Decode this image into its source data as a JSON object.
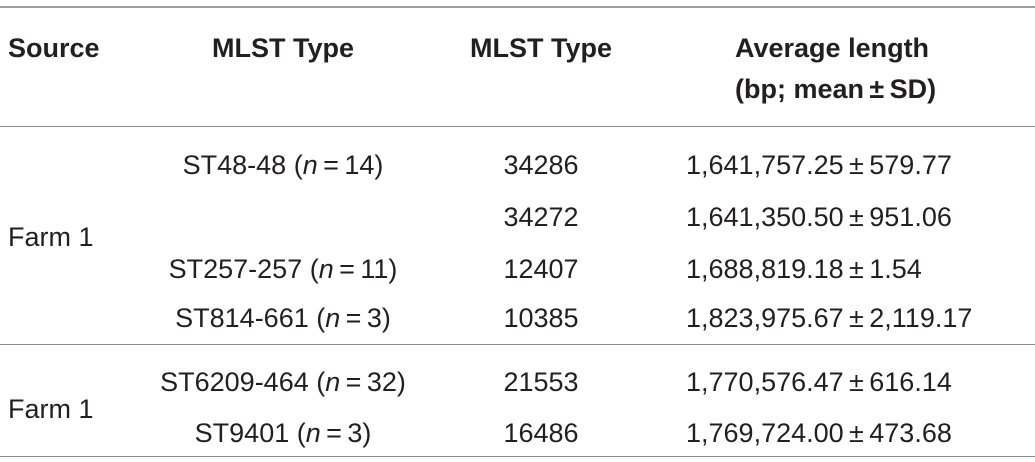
{
  "header": {
    "col1": "Source",
    "col2": "MLST Type",
    "col3": "MLST Type",
    "col4_line1": "Average length",
    "col4_line2": "(bp; mean ± SD)"
  },
  "groups": [
    {
      "source": "Farm 1",
      "rows": [
        {
          "type_pre": "ST48-48 (",
          "n_sym": "n",
          "type_post": " = 14)",
          "mlst": "34286",
          "avg": "1,641,757.25 ± 579.77"
        },
        {
          "type_pre": "",
          "n_sym": "",
          "type_post": "",
          "mlst": "34272",
          "avg": "1,641,350.50 ± 951.06"
        },
        {
          "type_pre": "ST257-257 (",
          "n_sym": "n",
          "type_post": " = 11)",
          "mlst": "12407",
          "avg": "1,688,819.18 ± 1.54"
        },
        {
          "type_pre": "ST814-661 (",
          "n_sym": "n",
          "type_post": " = 3)",
          "mlst": "10385",
          "avg": "1,823,975.67 ± 2,119.17"
        }
      ]
    },
    {
      "source": "Farm 1",
      "rows": [
        {
          "type_pre": "ST6209-464 (",
          "n_sym": "n",
          "type_post": " = 32)",
          "mlst": "21553",
          "avg": "1,770,576.47 ± 616.14"
        },
        {
          "type_pre": "ST9401 (",
          "n_sym": "n",
          "type_post": " = 3)",
          "mlst": "16486",
          "avg": "1,769,724.00 ± 473.68"
        }
      ]
    }
  ]
}
